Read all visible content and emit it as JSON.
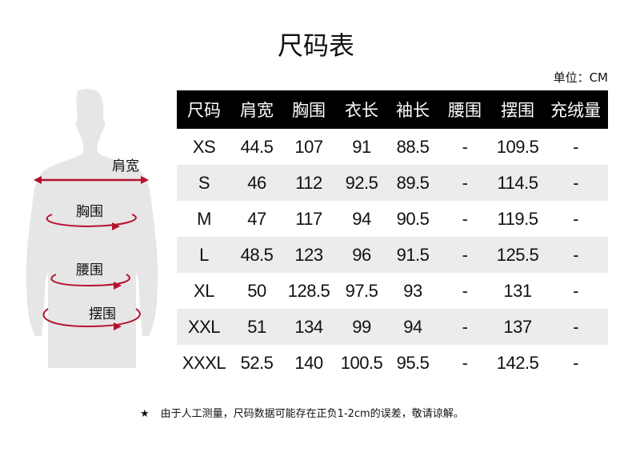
{
  "title": "尺码表",
  "unit": "单位：CM",
  "figure": {
    "labels": [
      "肩宽",
      "胸围",
      "腰围",
      "摆围"
    ],
    "arrow_color": "#b5122e",
    "body_color": "#e6e6e6"
  },
  "table": {
    "headers": [
      "尺码",
      "肩宽",
      "胸围",
      "衣长",
      "袖长",
      "腰围",
      "摆围",
      "充绒量"
    ],
    "rows": [
      [
        "XS",
        "44.5",
        "107",
        "91",
        "88.5",
        "-",
        "109.5",
        "-"
      ],
      [
        "S",
        "46",
        "112",
        "92.5",
        "89.5",
        "-",
        "114.5",
        "-"
      ],
      [
        "M",
        "47",
        "117",
        "94",
        "90.5",
        "-",
        "119.5",
        "-"
      ],
      [
        "L",
        "48.5",
        "123",
        "96",
        "91.5",
        "-",
        "125.5",
        "-"
      ],
      [
        "XL",
        "50",
        "128.5",
        "97.5",
        "93",
        "-",
        "131",
        "-"
      ],
      [
        "XXL",
        "51",
        "134",
        "99",
        "94",
        "-",
        "137",
        "-"
      ],
      [
        "XXXL",
        "52.5",
        "140",
        "100.5",
        "95.5",
        "-",
        "142.5",
        "-"
      ]
    ]
  },
  "note": {
    "icon": "star-icon",
    "star": "★",
    "text": "由于人工测量，尺码数据可能存在正负1-2cm的误差，敬请谅解。"
  }
}
